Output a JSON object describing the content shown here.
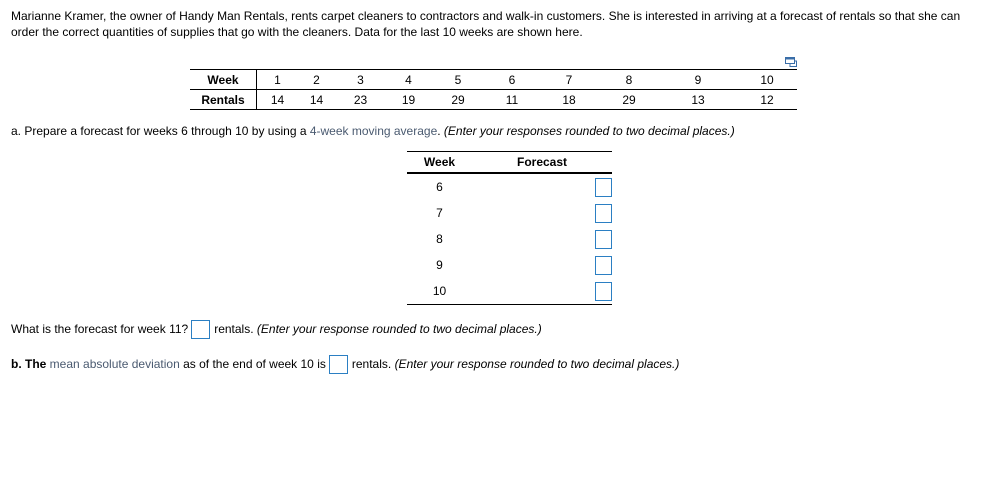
{
  "intro_text": "Marianne Kramer, the owner of Handy Man Rentals, rents carpet cleaners to contractors and walk-in customers. She is interested in arriving at a forecast of rentals so that she can order the correct quantities of supplies that go with the cleaners. Data for the last 10 weeks are shown here.",
  "data_table": {
    "week_label": "Week",
    "rentals_label": "Rentals",
    "weeks": [
      "1",
      "2",
      "3",
      "4",
      "5",
      "6",
      "7",
      "8",
      "9",
      "10"
    ],
    "rentals": [
      "14",
      "14",
      "23",
      "19",
      "29",
      "11",
      "18",
      "29",
      "13",
      "12"
    ]
  },
  "part_a": {
    "prefix": "a. Prepare a forecast for weeks 6 through 10 by using a ",
    "link": "4-week moving average",
    "suffix": ". ",
    "instruction": "(Enter your responses rounded to two decimal places.)"
  },
  "forecast_table": {
    "week_header": "Week",
    "forecast_header": "Forecast",
    "weeks": [
      "6",
      "7",
      "8",
      "9",
      "10"
    ]
  },
  "week11": {
    "question": "What is the forecast for week 11?",
    "unit": "rentals.",
    "instruction": "(Enter your response rounded to two decimal places.)"
  },
  "part_b": {
    "prefix": "b. The ",
    "link": "mean absolute deviation",
    "middle": " as of the end of week 10 is",
    "unit": "rentals.",
    "instruction": "(Enter your response rounded to two decimal places.)"
  },
  "icons": {
    "copy": "copy-table-icon"
  },
  "colors": {
    "input_border": "#2b7fc3",
    "link": "#4a5a70"
  }
}
